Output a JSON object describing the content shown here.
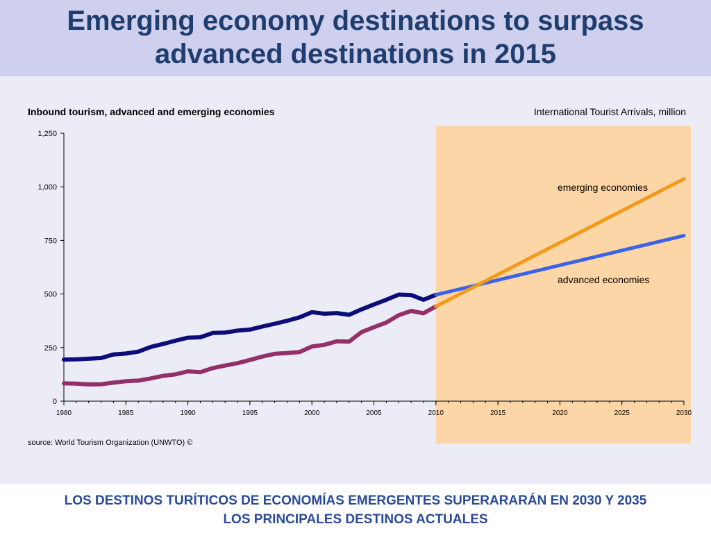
{
  "slide": {
    "title_line1": "Emerging economy destinations to surpass",
    "title_line2": "advanced destinations in 2015",
    "footer_line1": "LOS DESTINOS TURÍTICOS DE ECONOMÍAS EMERGENTES SUPERARARÁN EN 2030 Y 2035",
    "footer_line2": "LOS PRINCIPALES DESTINOS ACTUALES"
  },
  "chart_data": {
    "type": "line",
    "title": "Inbound tourism, advanced and emerging economies",
    "subtitle": "International Tourist Arrivals, million",
    "source": "source: World Tourism Organization (UNWTO) ©",
    "xlabel": "",
    "ylabel": "",
    "xlim": [
      1980,
      2030
    ],
    "ylim": [
      0,
      1250
    ],
    "x_ticks": [
      1980,
      1985,
      1990,
      1995,
      2000,
      2005,
      2010,
      2015,
      2020,
      2025,
      2030
    ],
    "y_ticks": [
      0,
      250,
      500,
      750,
      1000,
      1250
    ],
    "y_tick_labels": [
      "0",
      "250",
      "500",
      "750",
      "1,000",
      "1,250"
    ],
    "forecast_region": [
      2010,
      2031
    ],
    "series": [
      {
        "name": "advanced economies",
        "kind": "actual",
        "color": "#0d0d7a",
        "x": [
          1980,
          1981,
          1982,
          1983,
          1984,
          1985,
          1986,
          1987,
          1988,
          1989,
          1990,
          1991,
          1992,
          1993,
          1994,
          1995,
          1996,
          1997,
          1998,
          1999,
          2000,
          2001,
          2002,
          2003,
          2004,
          2005,
          2006,
          2007,
          2008,
          2009,
          2010
        ],
        "values": [
          194,
          195,
          198,
          201,
          218,
          222,
          231,
          253,
          267,
          282,
          296,
          298,
          318,
          320,
          329,
          334,
          348,
          361,
          375,
          391,
          415,
          408,
          411,
          403,
          428,
          451,
          473,
          497,
          495,
          473,
          496
        ]
      },
      {
        "name": "emerging economies",
        "kind": "actual",
        "color": "#933068",
        "x": [
          1980,
          1981,
          1982,
          1983,
          1984,
          1985,
          1986,
          1987,
          1988,
          1989,
          1990,
          1991,
          1992,
          1993,
          1994,
          1995,
          1996,
          1997,
          1998,
          1999,
          2000,
          2001,
          2002,
          2003,
          2004,
          2005,
          2006,
          2007,
          2008,
          2009,
          2010
        ],
        "values": [
          83,
          82,
          78,
          79,
          86,
          93,
          96,
          106,
          118,
          125,
          139,
          135,
          154,
          166,
          177,
          192,
          208,
          221,
          224,
          229,
          255,
          263,
          279,
          278,
          322,
          345,
          367,
          401,
          421,
          410,
          442
        ]
      },
      {
        "name": "advanced economies",
        "kind": "forecast",
        "color": "#3b63e6",
        "x": [
          2010,
          2030
        ],
        "values": [
          496,
          772
        ],
        "label": "advanced economies"
      },
      {
        "name": "emerging economies",
        "kind": "forecast",
        "color": "#f29a1a",
        "x": [
          2010,
          2030
        ],
        "values": [
          442,
          1037
        ],
        "label": "emerging economies"
      }
    ],
    "colors": {
      "forecast_band": "#fcd6a6",
      "plot_background": "#ececf7"
    }
  }
}
